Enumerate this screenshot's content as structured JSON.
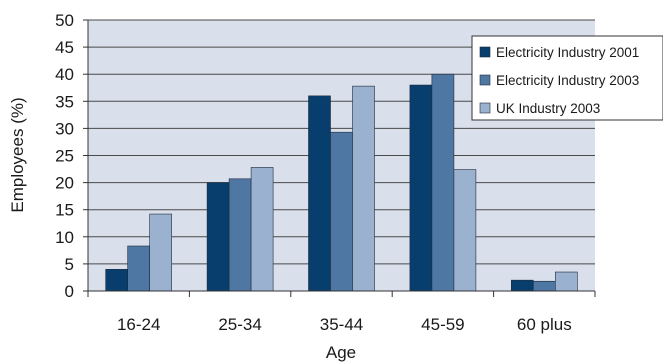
{
  "chart_data": {
    "type": "bar",
    "title": "",
    "xlabel": "Age",
    "ylabel": "Employees (%)",
    "categories": [
      "16-24",
      "25-34",
      "35-44",
      "45-59",
      "60 plus"
    ],
    "ylim": [
      0,
      50
    ],
    "yticks": [
      0,
      5,
      10,
      15,
      20,
      25,
      30,
      35,
      40,
      45,
      50
    ],
    "grid": true,
    "legend_position": "right",
    "series": [
      {
        "name": "Electricity Industry 2001",
        "color": "#083e6e",
        "values": [
          4,
          20,
          36,
          38,
          2
        ]
      },
      {
        "name": "Electricity Industry 2003",
        "color": "#4f77a4",
        "values": [
          8.3,
          20.7,
          29.3,
          40,
          1.8
        ]
      },
      {
        "name": "UK Industry 2003",
        "color": "#9ab1d0",
        "values": [
          14.2,
          22.8,
          37.8,
          22.4,
          3.5
        ]
      }
    ],
    "plot_background": "#d9dfeb"
  }
}
